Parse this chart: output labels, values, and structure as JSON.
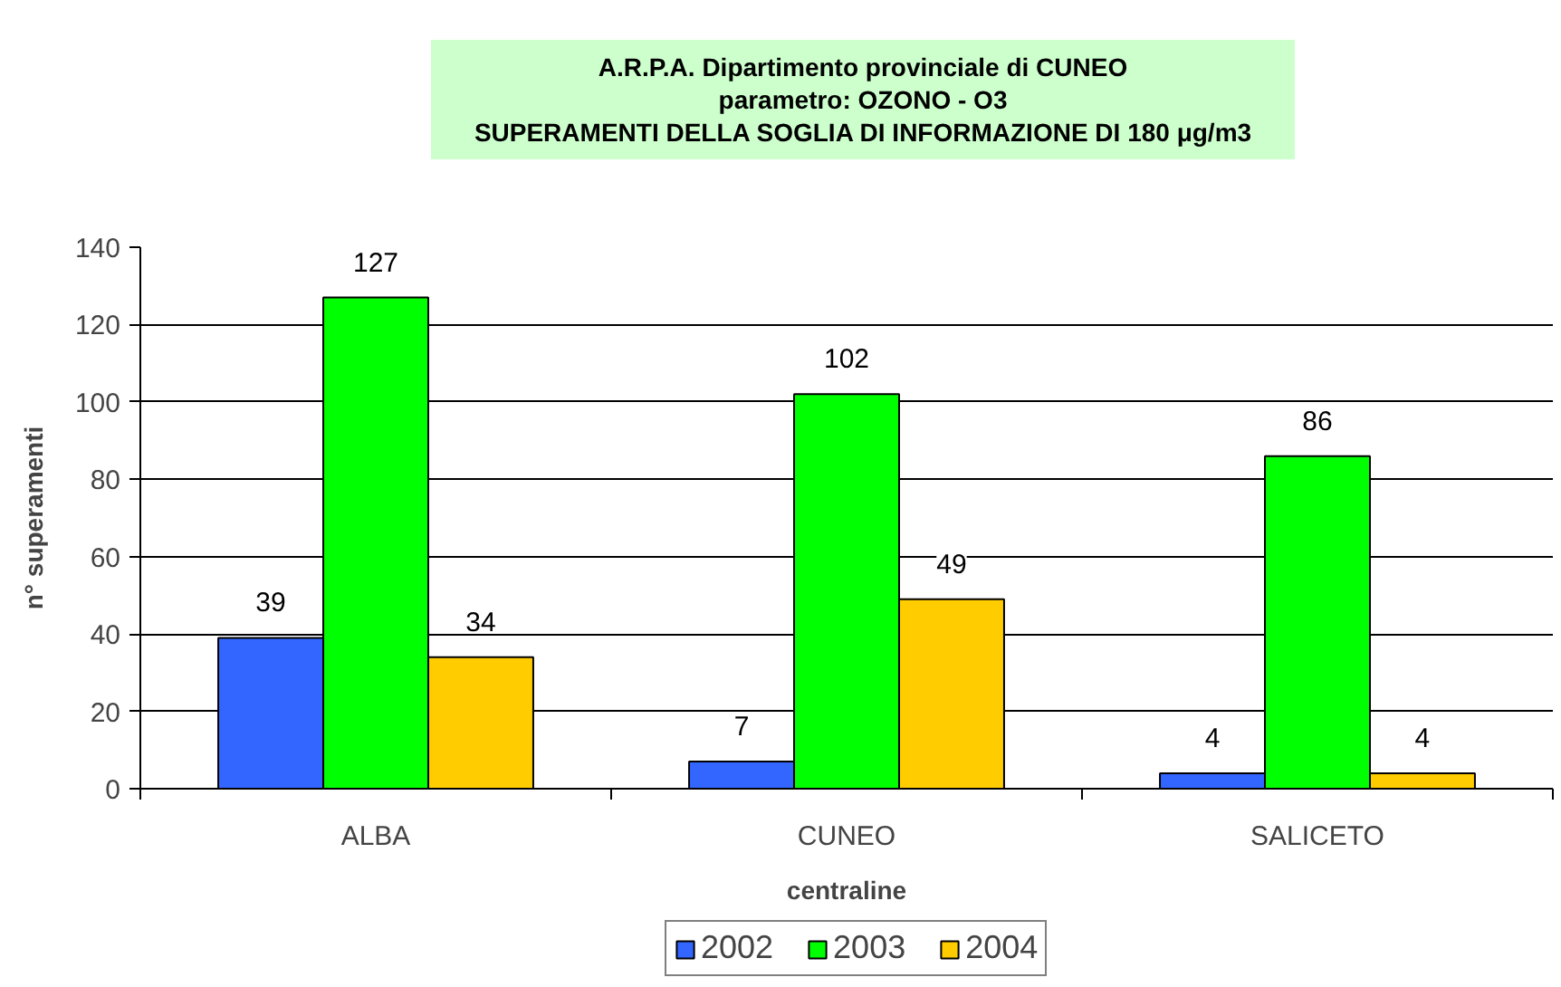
{
  "chart_data": {
    "type": "bar",
    "title": "A.R.P.A. Dipartimento provinciale di CUNEO\nparametro: OZONO - O3\nSUPERAMENTI DELLA SOGLIA DI INFORMAZIONE DI 180 μg/m3",
    "xlabel": "centraline",
    "ylabel": "n° superamenti",
    "categories": [
      "ALBA",
      "CUNEO",
      "SALICETO"
    ],
    "series": [
      {
        "name": "2002",
        "color": "#3366ff",
        "values": [
          39,
          7,
          4
        ]
      },
      {
        "name": "2003",
        "color": "#00ff00",
        "values": [
          127,
          102,
          86
        ]
      },
      {
        "name": "2004",
        "color": "#ffcc00",
        "values": [
          34,
          49,
          4
        ]
      }
    ],
    "ylim": [
      0,
      140
    ],
    "yticks": [
      0,
      20,
      40,
      60,
      80,
      100,
      120,
      140
    ],
    "grid": "y",
    "legend": "bottom",
    "data_labels": true
  }
}
